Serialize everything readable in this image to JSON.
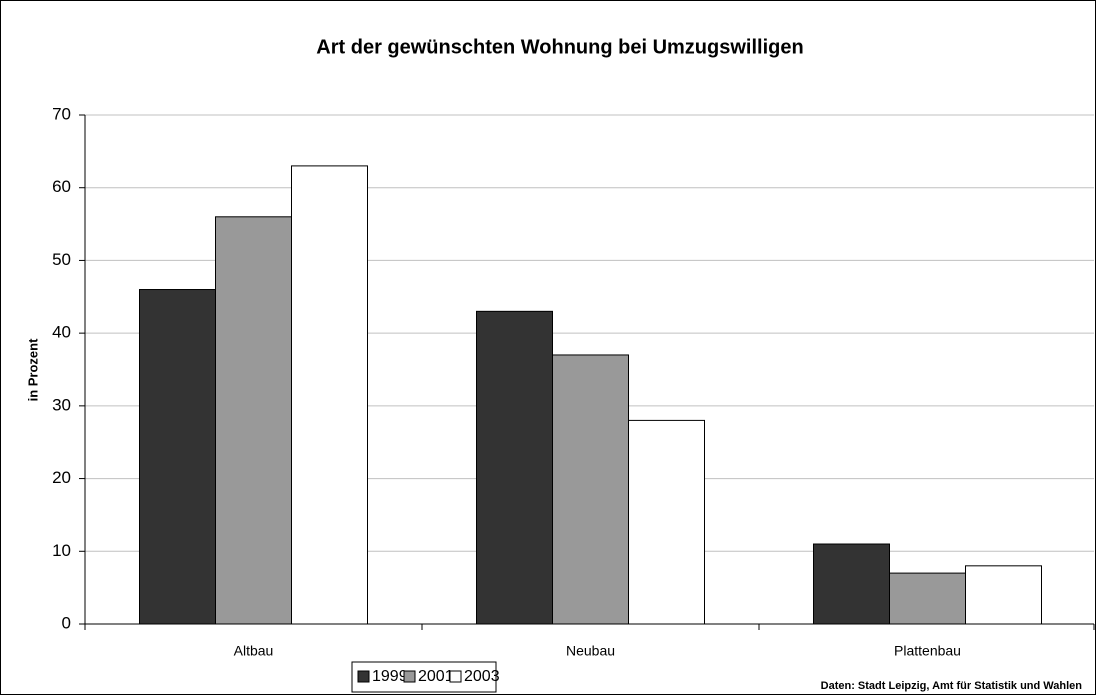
{
  "chart_data": {
    "type": "bar",
    "title": "Art der gewünschten Wohnung bei Umzugswilligen",
    "y_label": "in Prozent",
    "source": "Daten: Stadt Leipzig, Amt für Statistik und Wahlen",
    "categories": [
      "Altbau",
      "Neubau",
      "Plattenbau"
    ],
    "series": [
      {
        "name": "1999",
        "color": "#333333",
        "values": [
          46,
          43,
          11
        ]
      },
      {
        "name": "2001",
        "color": "#999999",
        "values": [
          56,
          37,
          7
        ]
      },
      {
        "name": "2003",
        "color": "#ffffff",
        "values": [
          63,
          28,
          8
        ]
      }
    ],
    "ylim": [
      0,
      70
    ],
    "yticks": [
      0,
      10,
      20,
      30,
      40,
      50,
      60,
      70
    ],
    "grid": true,
    "legend": "bottom"
  }
}
